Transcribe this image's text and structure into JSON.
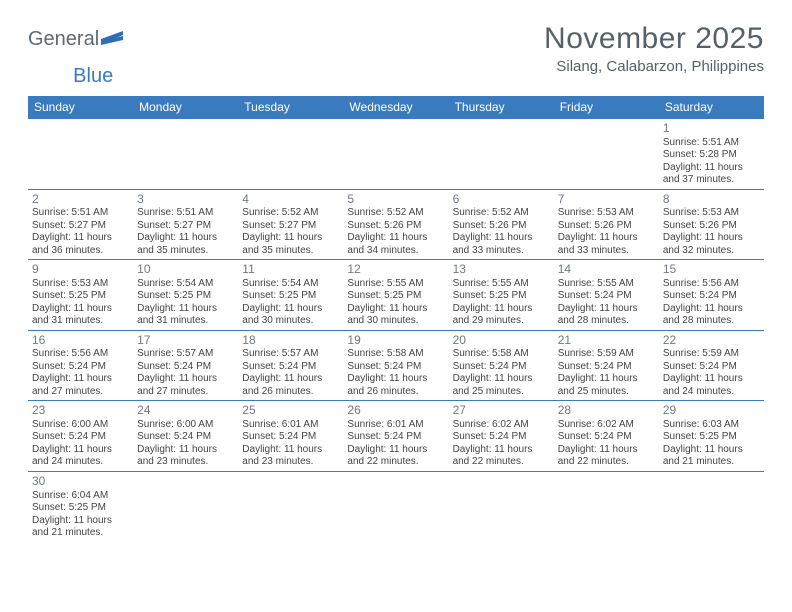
{
  "logo": {
    "word1": "General",
    "word2": "Blue",
    "flag_color": "#2f6eb5"
  },
  "title": "November 2025",
  "location": "Silang, Calabarzon, Philippines",
  "header_bg": "#3a7bbf",
  "header_text_color": "#ffffff",
  "border_color": "#3a7bbf",
  "text_color": "#56606a",
  "day_headers": [
    "Sunday",
    "Monday",
    "Tuesday",
    "Wednesday",
    "Thursday",
    "Friday",
    "Saturday"
  ],
  "weeks": [
    [
      {
        "day": "",
        "sunrise": "",
        "sunset": "",
        "daylight": ""
      },
      {
        "day": "",
        "sunrise": "",
        "sunset": "",
        "daylight": ""
      },
      {
        "day": "",
        "sunrise": "",
        "sunset": "",
        "daylight": ""
      },
      {
        "day": "",
        "sunrise": "",
        "sunset": "",
        "daylight": ""
      },
      {
        "day": "",
        "sunrise": "",
        "sunset": "",
        "daylight": ""
      },
      {
        "day": "",
        "sunrise": "",
        "sunset": "",
        "daylight": ""
      },
      {
        "day": "1",
        "sunrise": "Sunrise: 5:51 AM",
        "sunset": "Sunset: 5:28 PM",
        "daylight": "Daylight: 11 hours and 37 minutes."
      }
    ],
    [
      {
        "day": "2",
        "sunrise": "Sunrise: 5:51 AM",
        "sunset": "Sunset: 5:27 PM",
        "daylight": "Daylight: 11 hours and 36 minutes."
      },
      {
        "day": "3",
        "sunrise": "Sunrise: 5:51 AM",
        "sunset": "Sunset: 5:27 PM",
        "daylight": "Daylight: 11 hours and 35 minutes."
      },
      {
        "day": "4",
        "sunrise": "Sunrise: 5:52 AM",
        "sunset": "Sunset: 5:27 PM",
        "daylight": "Daylight: 11 hours and 35 minutes."
      },
      {
        "day": "5",
        "sunrise": "Sunrise: 5:52 AM",
        "sunset": "Sunset: 5:26 PM",
        "daylight": "Daylight: 11 hours and 34 minutes."
      },
      {
        "day": "6",
        "sunrise": "Sunrise: 5:52 AM",
        "sunset": "Sunset: 5:26 PM",
        "daylight": "Daylight: 11 hours and 33 minutes."
      },
      {
        "day": "7",
        "sunrise": "Sunrise: 5:53 AM",
        "sunset": "Sunset: 5:26 PM",
        "daylight": "Daylight: 11 hours and 33 minutes."
      },
      {
        "day": "8",
        "sunrise": "Sunrise: 5:53 AM",
        "sunset": "Sunset: 5:26 PM",
        "daylight": "Daylight: 11 hours and 32 minutes."
      }
    ],
    [
      {
        "day": "9",
        "sunrise": "Sunrise: 5:53 AM",
        "sunset": "Sunset: 5:25 PM",
        "daylight": "Daylight: 11 hours and 31 minutes."
      },
      {
        "day": "10",
        "sunrise": "Sunrise: 5:54 AM",
        "sunset": "Sunset: 5:25 PM",
        "daylight": "Daylight: 11 hours and 31 minutes."
      },
      {
        "day": "11",
        "sunrise": "Sunrise: 5:54 AM",
        "sunset": "Sunset: 5:25 PM",
        "daylight": "Daylight: 11 hours and 30 minutes."
      },
      {
        "day": "12",
        "sunrise": "Sunrise: 5:55 AM",
        "sunset": "Sunset: 5:25 PM",
        "daylight": "Daylight: 11 hours and 30 minutes."
      },
      {
        "day": "13",
        "sunrise": "Sunrise: 5:55 AM",
        "sunset": "Sunset: 5:25 PM",
        "daylight": "Daylight: 11 hours and 29 minutes."
      },
      {
        "day": "14",
        "sunrise": "Sunrise: 5:55 AM",
        "sunset": "Sunset: 5:24 PM",
        "daylight": "Daylight: 11 hours and 28 minutes."
      },
      {
        "day": "15",
        "sunrise": "Sunrise: 5:56 AM",
        "sunset": "Sunset: 5:24 PM",
        "daylight": "Daylight: 11 hours and 28 minutes."
      }
    ],
    [
      {
        "day": "16",
        "sunrise": "Sunrise: 5:56 AM",
        "sunset": "Sunset: 5:24 PM",
        "daylight": "Daylight: 11 hours and 27 minutes."
      },
      {
        "day": "17",
        "sunrise": "Sunrise: 5:57 AM",
        "sunset": "Sunset: 5:24 PM",
        "daylight": "Daylight: 11 hours and 27 minutes."
      },
      {
        "day": "18",
        "sunrise": "Sunrise: 5:57 AM",
        "sunset": "Sunset: 5:24 PM",
        "daylight": "Daylight: 11 hours and 26 minutes."
      },
      {
        "day": "19",
        "sunrise": "Sunrise: 5:58 AM",
        "sunset": "Sunset: 5:24 PM",
        "daylight": "Daylight: 11 hours and 26 minutes."
      },
      {
        "day": "20",
        "sunrise": "Sunrise: 5:58 AM",
        "sunset": "Sunset: 5:24 PM",
        "daylight": "Daylight: 11 hours and 25 minutes."
      },
      {
        "day": "21",
        "sunrise": "Sunrise: 5:59 AM",
        "sunset": "Sunset: 5:24 PM",
        "daylight": "Daylight: 11 hours and 25 minutes."
      },
      {
        "day": "22",
        "sunrise": "Sunrise: 5:59 AM",
        "sunset": "Sunset: 5:24 PM",
        "daylight": "Daylight: 11 hours and 24 minutes."
      }
    ],
    [
      {
        "day": "23",
        "sunrise": "Sunrise: 6:00 AM",
        "sunset": "Sunset: 5:24 PM",
        "daylight": "Daylight: 11 hours and 24 minutes."
      },
      {
        "day": "24",
        "sunrise": "Sunrise: 6:00 AM",
        "sunset": "Sunset: 5:24 PM",
        "daylight": "Daylight: 11 hours and 23 minutes."
      },
      {
        "day": "25",
        "sunrise": "Sunrise: 6:01 AM",
        "sunset": "Sunset: 5:24 PM",
        "daylight": "Daylight: 11 hours and 23 minutes."
      },
      {
        "day": "26",
        "sunrise": "Sunrise: 6:01 AM",
        "sunset": "Sunset: 5:24 PM",
        "daylight": "Daylight: 11 hours and 22 minutes."
      },
      {
        "day": "27",
        "sunrise": "Sunrise: 6:02 AM",
        "sunset": "Sunset: 5:24 PM",
        "daylight": "Daylight: 11 hours and 22 minutes."
      },
      {
        "day": "28",
        "sunrise": "Sunrise: 6:02 AM",
        "sunset": "Sunset: 5:24 PM",
        "daylight": "Daylight: 11 hours and 22 minutes."
      },
      {
        "day": "29",
        "sunrise": "Sunrise: 6:03 AM",
        "sunset": "Sunset: 5:25 PM",
        "daylight": "Daylight: 11 hours and 21 minutes."
      }
    ],
    [
      {
        "day": "30",
        "sunrise": "Sunrise: 6:04 AM",
        "sunset": "Sunset: 5:25 PM",
        "daylight": "Daylight: 11 hours and 21 minutes."
      },
      {
        "day": "",
        "sunrise": "",
        "sunset": "",
        "daylight": ""
      },
      {
        "day": "",
        "sunrise": "",
        "sunset": "",
        "daylight": ""
      },
      {
        "day": "",
        "sunrise": "",
        "sunset": "",
        "daylight": ""
      },
      {
        "day": "",
        "sunrise": "",
        "sunset": "",
        "daylight": ""
      },
      {
        "day": "",
        "sunrise": "",
        "sunset": "",
        "daylight": ""
      },
      {
        "day": "",
        "sunrise": "",
        "sunset": "",
        "daylight": ""
      }
    ]
  ]
}
